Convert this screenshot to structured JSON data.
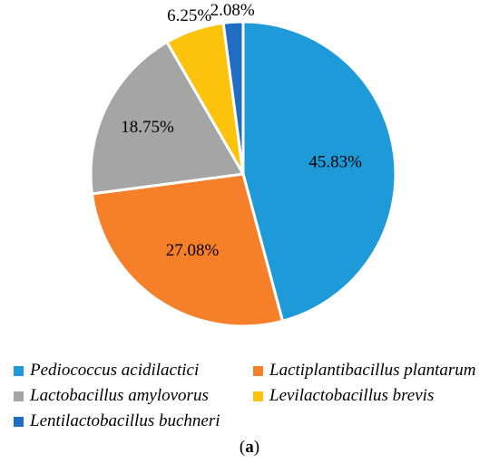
{
  "chart_data": {
    "type": "pie",
    "slices": [
      {
        "label": "Pediococcus acidilactici",
        "value": 45.83,
        "display": "45.83%",
        "color": "#1f9ad8"
      },
      {
        "label": "Lactiplantibacillus plantarum",
        "value": 27.08,
        "display": "27.08%",
        "color": "#f67f2a"
      },
      {
        "label": "Lactobacillus amylovorus",
        "value": 18.75,
        "display": "18.75%",
        "color": "#a5a5a5"
      },
      {
        "label": "Levilactobacillus brevis",
        "value": 6.25,
        "display": "6.25%",
        "color": "#fcc20c"
      },
      {
        "label": "Lentilactobacillus buchneri",
        "value": 2.08,
        "display": "2.08%",
        "color": "#1f6ec4"
      }
    ],
    "start": "12 o'clock",
    "direction": "clockwise",
    "legend_position": "bottom"
  },
  "caption": {
    "open": "(",
    "letter": "a",
    "close": ")"
  }
}
